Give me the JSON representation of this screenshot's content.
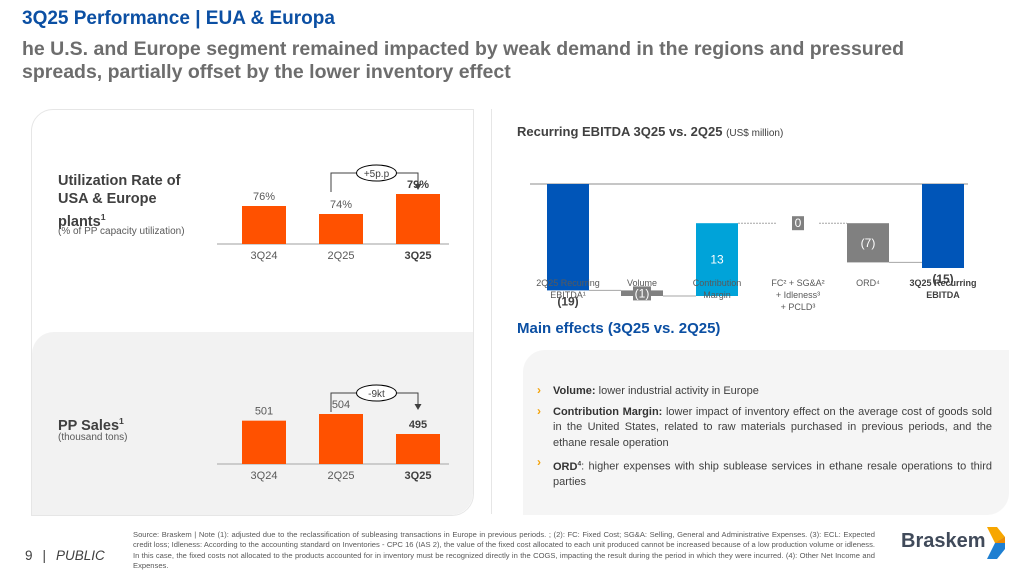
{
  "header": {
    "title": "3Q25 Performance | EUA & Europa",
    "subtitle": "he U.S. and Europe segment remained impacted by weak demand in the regions and pressured spreads, partially offset by the lower inventory effect"
  },
  "colors": {
    "brand_blue": "#0b4fa3",
    "bar_orange": "#ff5100",
    "wf_total_blue": "#0055b8",
    "wf_positive_cyan": "#00a3d9",
    "wf_negative_gray": "#808080",
    "bullet_yellow": "#f3a30b"
  },
  "utilization": {
    "title_line1": "Utilization Rate of",
    "title_line2": "USA & Europe",
    "title_line3": "plants",
    "title_sup": "1",
    "subtitle": "(% of PP capacity utilization)",
    "delta_label": "+5p.p"
  },
  "pp_sales": {
    "title": "PP Sales",
    "title_sup": "1",
    "subtitle": "(thousand tons)",
    "delta_label": "-9kt"
  },
  "waterfall_title": {
    "main": "Recurring EBITDA 3Q25 vs. 2Q25",
    "unit": "(US$ million)"
  },
  "chart_data": [
    {
      "type": "bar",
      "title": "Utilization Rate of USA & Europe plants (% of PP capacity utilization)",
      "categories": [
        "3Q24",
        "2Q25",
        "3Q25"
      ],
      "values": [
        76,
        74,
        79
      ],
      "value_labels": [
        "76%",
        "74%",
        "79%"
      ],
      "bold_category": "3Q25",
      "unit": "%",
      "annotation": "+5p.p (2Q25 → 3Q25)",
      "ylim": [
        0,
        100
      ]
    },
    {
      "type": "bar",
      "title": "PP Sales (thousand tons)",
      "categories": [
        "3Q24",
        "2Q25",
        "3Q25"
      ],
      "values": [
        501,
        504,
        495
      ],
      "value_labels": [
        "501",
        "504",
        "495"
      ],
      "bold_category": "3Q25",
      "unit": "kt",
      "annotation": "-9kt (2Q25 → 3Q25)",
      "ylim": [
        0,
        600
      ]
    },
    {
      "type": "bar",
      "subtype": "waterfall",
      "title": "Recurring EBITDA 3Q25 vs. 2Q25 (US$ million)",
      "categories": [
        "2Q25 Recurring EBITDA¹",
        "Volume",
        "Contribution Margin",
        "FC² + SG&A² + Idleness³ + PCLD³",
        "ORD⁴",
        "3Q25 Recurring EBITDA"
      ],
      "category_lines": [
        [
          "2Q25 Recurring",
          "EBITDA¹"
        ],
        [
          "Volume"
        ],
        [
          "Contribution",
          "Margin"
        ],
        [
          "FC² + SG&A²",
          "+ Idleness³",
          "+ PCLD³"
        ],
        [
          "ORD⁴"
        ],
        [
          "3Q25 Recurring",
          "EBITDA"
        ]
      ],
      "values": [
        -19,
        -1,
        13,
        0,
        -7,
        -15
      ],
      "value_labels": [
        "(19)",
        "(1)",
        "13",
        "0",
        "(7)",
        "(15)"
      ],
      "kinds": [
        "total",
        "delta",
        "delta",
        "delta",
        "delta",
        "total"
      ],
      "bold_category": "3Q25 Recurring EBITDA",
      "ylim": [
        -21,
        0
      ]
    }
  ],
  "main_effects": {
    "title": "Main effects (3Q25 vs. 2Q25)",
    "items": [
      {
        "label": "Volume:",
        "sup": "",
        "text": " lower industrial activity in Europe"
      },
      {
        "label": "Contribution Margin:",
        "sup": "",
        "text": " lower impact of inventory effect on the average cost of goods sold in the United States, related to raw materials purchased in previous periods, and the ethane resale operation"
      },
      {
        "label": "ORD",
        "sup": "4",
        "text": ": higher expenses with ship sublease services in ethane resale operations to third parties"
      }
    ]
  },
  "footer": {
    "page_number": "9",
    "separator": "|",
    "classification": "PUBLIC",
    "footnote": "Source: Braskem | Note (1): adjusted due to the reclassification of subleasing transactions in Europe in previous periods. ; (2): FC: Fixed Cost; SG&A: Selling, General and Administrative Expenses. (3): ECL: Expected credit loss; Idleness: According to the accounting standard on Inventories - CPC 16 (IAS 2), the value of the fixed cost allocated to each unit produced cannot be increased because of a low production volume or idleness. In this case, the fixed costs not allocated to the products accounted for in inventory must be recognized directly in the COGS, impacting the result during the period in which they were incurred. (4): Other Net Income and Expenses.",
    "logo_text": "Braskem"
  }
}
